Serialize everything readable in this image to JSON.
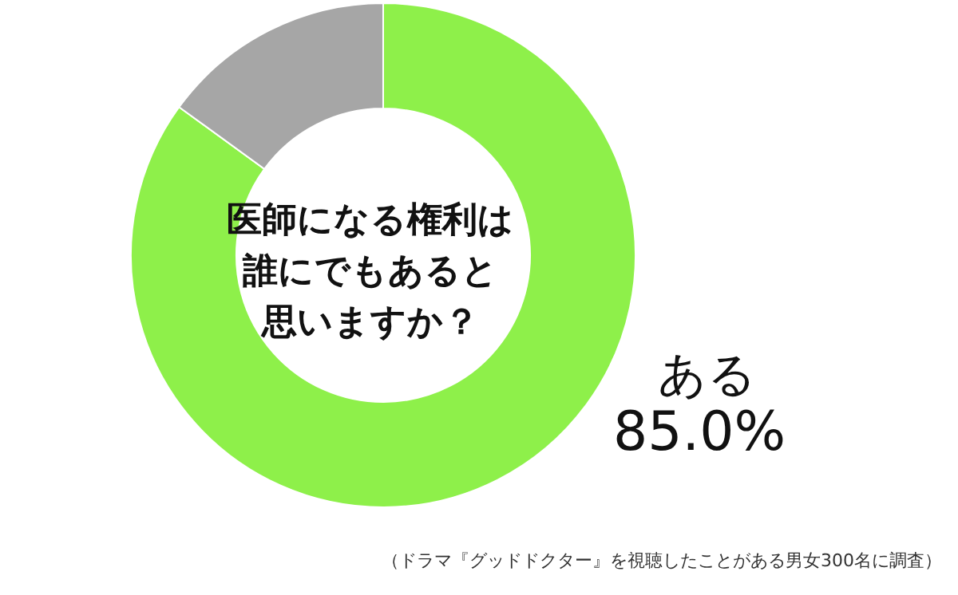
{
  "chart_data": {
    "type": "donut",
    "title": "医師になる権利は誰にでもあると思いますか？",
    "categories": [
      "ある",
      null
    ],
    "values": [
      85.0,
      15.0
    ],
    "colors": [
      "#8ef04a",
      "#a6a6a6"
    ],
    "value_labels": [
      "85.0%",
      null
    ],
    "annotations": [
      "（ドラマ『グッドドクター』を視聴したことがある男女300名に調査）"
    ]
  }
}
